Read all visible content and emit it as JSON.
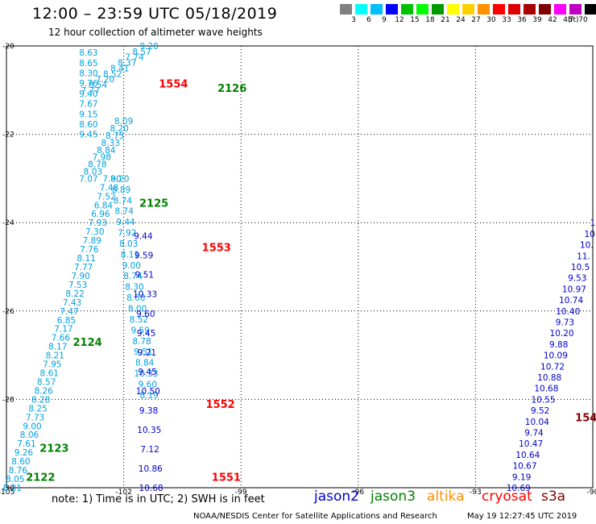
{
  "header": {
    "title": "12:00 – 23:59 UTC 05/18/2019",
    "subtitle": "12 hour collection of altimeter wave heights"
  },
  "legend": {
    "unit": "(ft)",
    "bins": [
      {
        "label": "",
        "color": "#808080"
      },
      {
        "label": "3",
        "color": "#00ffff"
      },
      {
        "label": "6",
        "color": "#00bfff"
      },
      {
        "label": "9",
        "color": "#0000ff"
      },
      {
        "label": "12",
        "color": "#00c000"
      },
      {
        "label": "15",
        "color": "#00ff00"
      },
      {
        "label": "18",
        "color": "#009a00"
      },
      {
        "label": "21",
        "color": "#ffff00"
      },
      {
        "label": "24",
        "color": "#ffd000"
      },
      {
        "label": "27",
        "color": "#ff9000"
      },
      {
        "label": "30",
        "color": "#ff0000"
      },
      {
        "label": "33",
        "color": "#dd0000"
      },
      {
        "label": "36",
        "color": "#aa0000"
      },
      {
        "label": "39",
        "color": "#800000"
      },
      {
        "label": "42",
        "color": "#ff00ff"
      },
      {
        "label": "45",
        "color": "#c000c0"
      },
      {
        "label": "70",
        "color": "#000000"
      }
    ]
  },
  "map": {
    "lat_labels": [
      "-20",
      "-22",
      "-24",
      "-26",
      "-28",
      "-30"
    ],
    "lon_labels": [
      "-105",
      "-102",
      "-99",
      "-96",
      "-93",
      "-90"
    ],
    "lat_range": [
      -30,
      -20
    ],
    "lon_range": [
      -105,
      -90
    ],
    "colors": {
      "light": "#00a0e0",
      "dark": "#0000cc",
      "jason3": "#008000",
      "cryosat": "#ff0000",
      "s3a": "#800000"
    },
    "passes": [
      {
        "color_key": "light",
        "lon_start": -102.9,
        "lon_end": -102.9,
        "lat_start": -20.15,
        "lat_end": -22.0,
        "values": [
          "8.63",
          "8.65",
          "8.30",
          "9.76",
          "9.40",
          "7.67",
          "9.15",
          "8.60",
          "9.45"
        ]
      },
      {
        "color_key": "light",
        "lon_start": -101.35,
        "lon_end": -102.85,
        "lat_start": -20.0,
        "lat_end": -21.0,
        "values": [
          "9.20",
          "8.57",
          "7.74",
          "8.37",
          "8.41",
          "8.52",
          "7.20",
          "8.54",
          "7.77"
        ]
      },
      {
        "color_key": "light",
        "lon_start": -102.0,
        "lon_end": -102.9,
        "lat_start": -21.7,
        "lat_end": -23.0,
        "values": [
          "8.09",
          "8.20",
          "8.75",
          "8.33",
          "8.84",
          "7.98",
          "8.78",
          "8.03",
          "7.07"
        ]
      },
      {
        "color_key": "light",
        "lon_start": -102.3,
        "lon_end": -104.85,
        "lat_start": -23.0,
        "lat_end": -30.0,
        "values": [
          "7.90",
          "7.48",
          "7.52",
          "6.84",
          "6.96",
          "7.93",
          "7.30",
          "7.89",
          "7.76",
          "8.11",
          "7.77",
          "7.90",
          "7.53",
          "8.22",
          "7.43",
          "7.47",
          "6.85",
          "7.17",
          "7.66",
          "8.17",
          "8.21",
          "7.95",
          "8.61",
          "8.57",
          "8.26",
          "8.28",
          "8.25",
          "7.73",
          "9.00",
          "8.06",
          "7.61",
          "9.26",
          "8.60",
          "8.76",
          "8.05",
          "8.31"
        ]
      },
      {
        "color_key": "light",
        "lon_start": -102.1,
        "lon_end": -101.35,
        "lat_start": -23.0,
        "lat_end": -27.9,
        "values": [
          "8.20",
          "8.89",
          "8.74",
          "8.74",
          "9.44",
          "7.92",
          "8.03",
          "8.11",
          "9.00",
          "8.74",
          "8.30",
          "8.68",
          "8.00",
          "8.52",
          "9.59",
          "8.78",
          "9.51",
          "8.84",
          "10.33",
          "9.60",
          "8.19"
        ]
      },
      {
        "color_key": "dark",
        "lon_start": -101.5,
        "lon_end": -101.3,
        "lat_start": -24.3,
        "lat_end": -30.0,
        "values": [
          "9.44",
          "9.59",
          "9.51",
          "10.33",
          "9.60",
          "9.45",
          "9.21",
          "9.45",
          "10.50",
          "9.38",
          "10.35",
          "7.12",
          "10.86",
          "10.68"
        ]
      },
      {
        "color_key": "dark",
        "lon_start": -90.0,
        "lon_end": -91.9,
        "lat_start": -24.0,
        "lat_end": -30.0,
        "values": [
          "1",
          "10",
          "10.",
          "11.",
          "10.5",
          "9.53",
          "10.97",
          "10.74",
          "10.40",
          "9.73",
          "10.20",
          "9.88",
          "10.09",
          "10.72",
          "10.88",
          "10.68",
          "10.55",
          "9.52",
          "10.04",
          "9.74",
          "10.47",
          "10.64",
          "10.67",
          "9.19",
          "10.69"
        ]
      }
    ],
    "pass_labels": [
      {
        "text": "1554",
        "lon": -101.1,
        "lat": -20.85,
        "color_key": "cryosat"
      },
      {
        "text": "2126",
        "lon": -99.6,
        "lat": -20.95,
        "color_key": "jason3"
      },
      {
        "text": "2125",
        "lon": -101.6,
        "lat": -23.55,
        "color_key": "jason3"
      },
      {
        "text": "1553",
        "lon": -100.0,
        "lat": -24.55,
        "color_key": "cryosat"
      },
      {
        "text": "2124",
        "lon": -103.3,
        "lat": -26.7,
        "color_key": "jason3"
      },
      {
        "text": "1552",
        "lon": -99.9,
        "lat": -28.1,
        "color_key": "cryosat"
      },
      {
        "text": "2123",
        "lon": -104.15,
        "lat": -29.1,
        "color_key": "jason3"
      },
      {
        "text": "2122",
        "lon": -104.5,
        "lat": -29.75,
        "color_key": "jason3"
      },
      {
        "text": "1551",
        "lon": -99.75,
        "lat": -29.75,
        "color_key": "cryosat"
      },
      {
        "text": "154",
        "lon": -90.45,
        "lat": -28.4,
        "color_key": "s3a"
      }
    ]
  },
  "note": "note: 1) Time is in UTC; 2) SWH is in feet",
  "satellites": [
    {
      "name": "jason2",
      "color": "#0000cc",
      "pos": 390
    },
    {
      "name": "jason3",
      "color": "#008000",
      "pos": 460
    },
    {
      "name": "altika",
      "color": "#ff9000",
      "pos": 530
    },
    {
      "name": "cryosat",
      "color": "#ff0000",
      "pos": 598
    },
    {
      "name": "s3a",
      "color": "#800000",
      "pos": 672
    }
  ],
  "footer": {
    "credit": "NOAA/NESDIS Center for Satellite Applications and Research",
    "date": "May 19 12:27:45 UTC 2019"
  }
}
